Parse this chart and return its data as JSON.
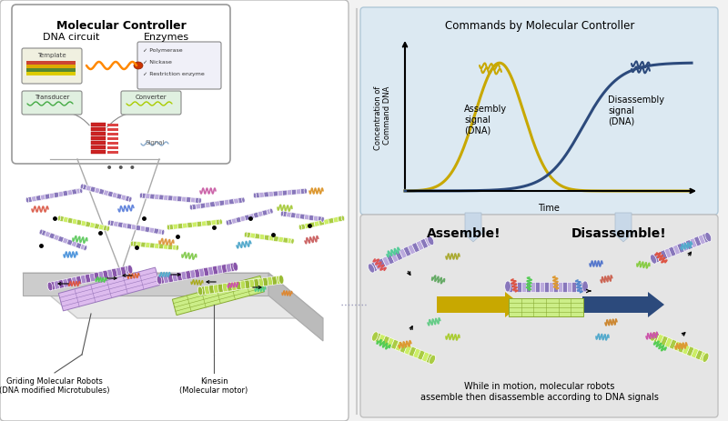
{
  "bg_color": "#f2f2f2",
  "left_panel_bg": "#ffffff",
  "right_top_bg": "#dce9f2",
  "right_bottom_bg": "#e5e5e5",
  "title_mc": "Molecular Controller",
  "title_dna": "DNA circuit",
  "title_enz": "Enzymes",
  "graph_title": "Commands by Molecular Controller",
  "graph_xlabel": "Time",
  "graph_ylabel": "Concentration of\nCommand DNA",
  "assembly_label": "Assembly\nsignal\n(DNA)",
  "disassembly_label": "Disassembly\nsignal\n(DNA)",
  "assemble_text": "Assemble!",
  "disassemble_text": "Disassemble!",
  "bottom_caption": "While in motion, molecular robots\nassemble then disassemble according to DNA signals",
  "label_robots": "Griding Molecular Robots\n(DNA modified Microtubules)",
  "label_kinesin": "Kinesin\n(Molecular motor)",
  "assembly_color": "#c8a800",
  "disassembly_color": "#2c4a7c",
  "arrow_assemble_color": "#c8a800",
  "arrow_disassemble_color": "#2c4a7c",
  "purple1": "#8877bb",
  "purple2": "#bbaadd",
  "yellow1": "#aacc44",
  "yellow2": "#ccee66"
}
